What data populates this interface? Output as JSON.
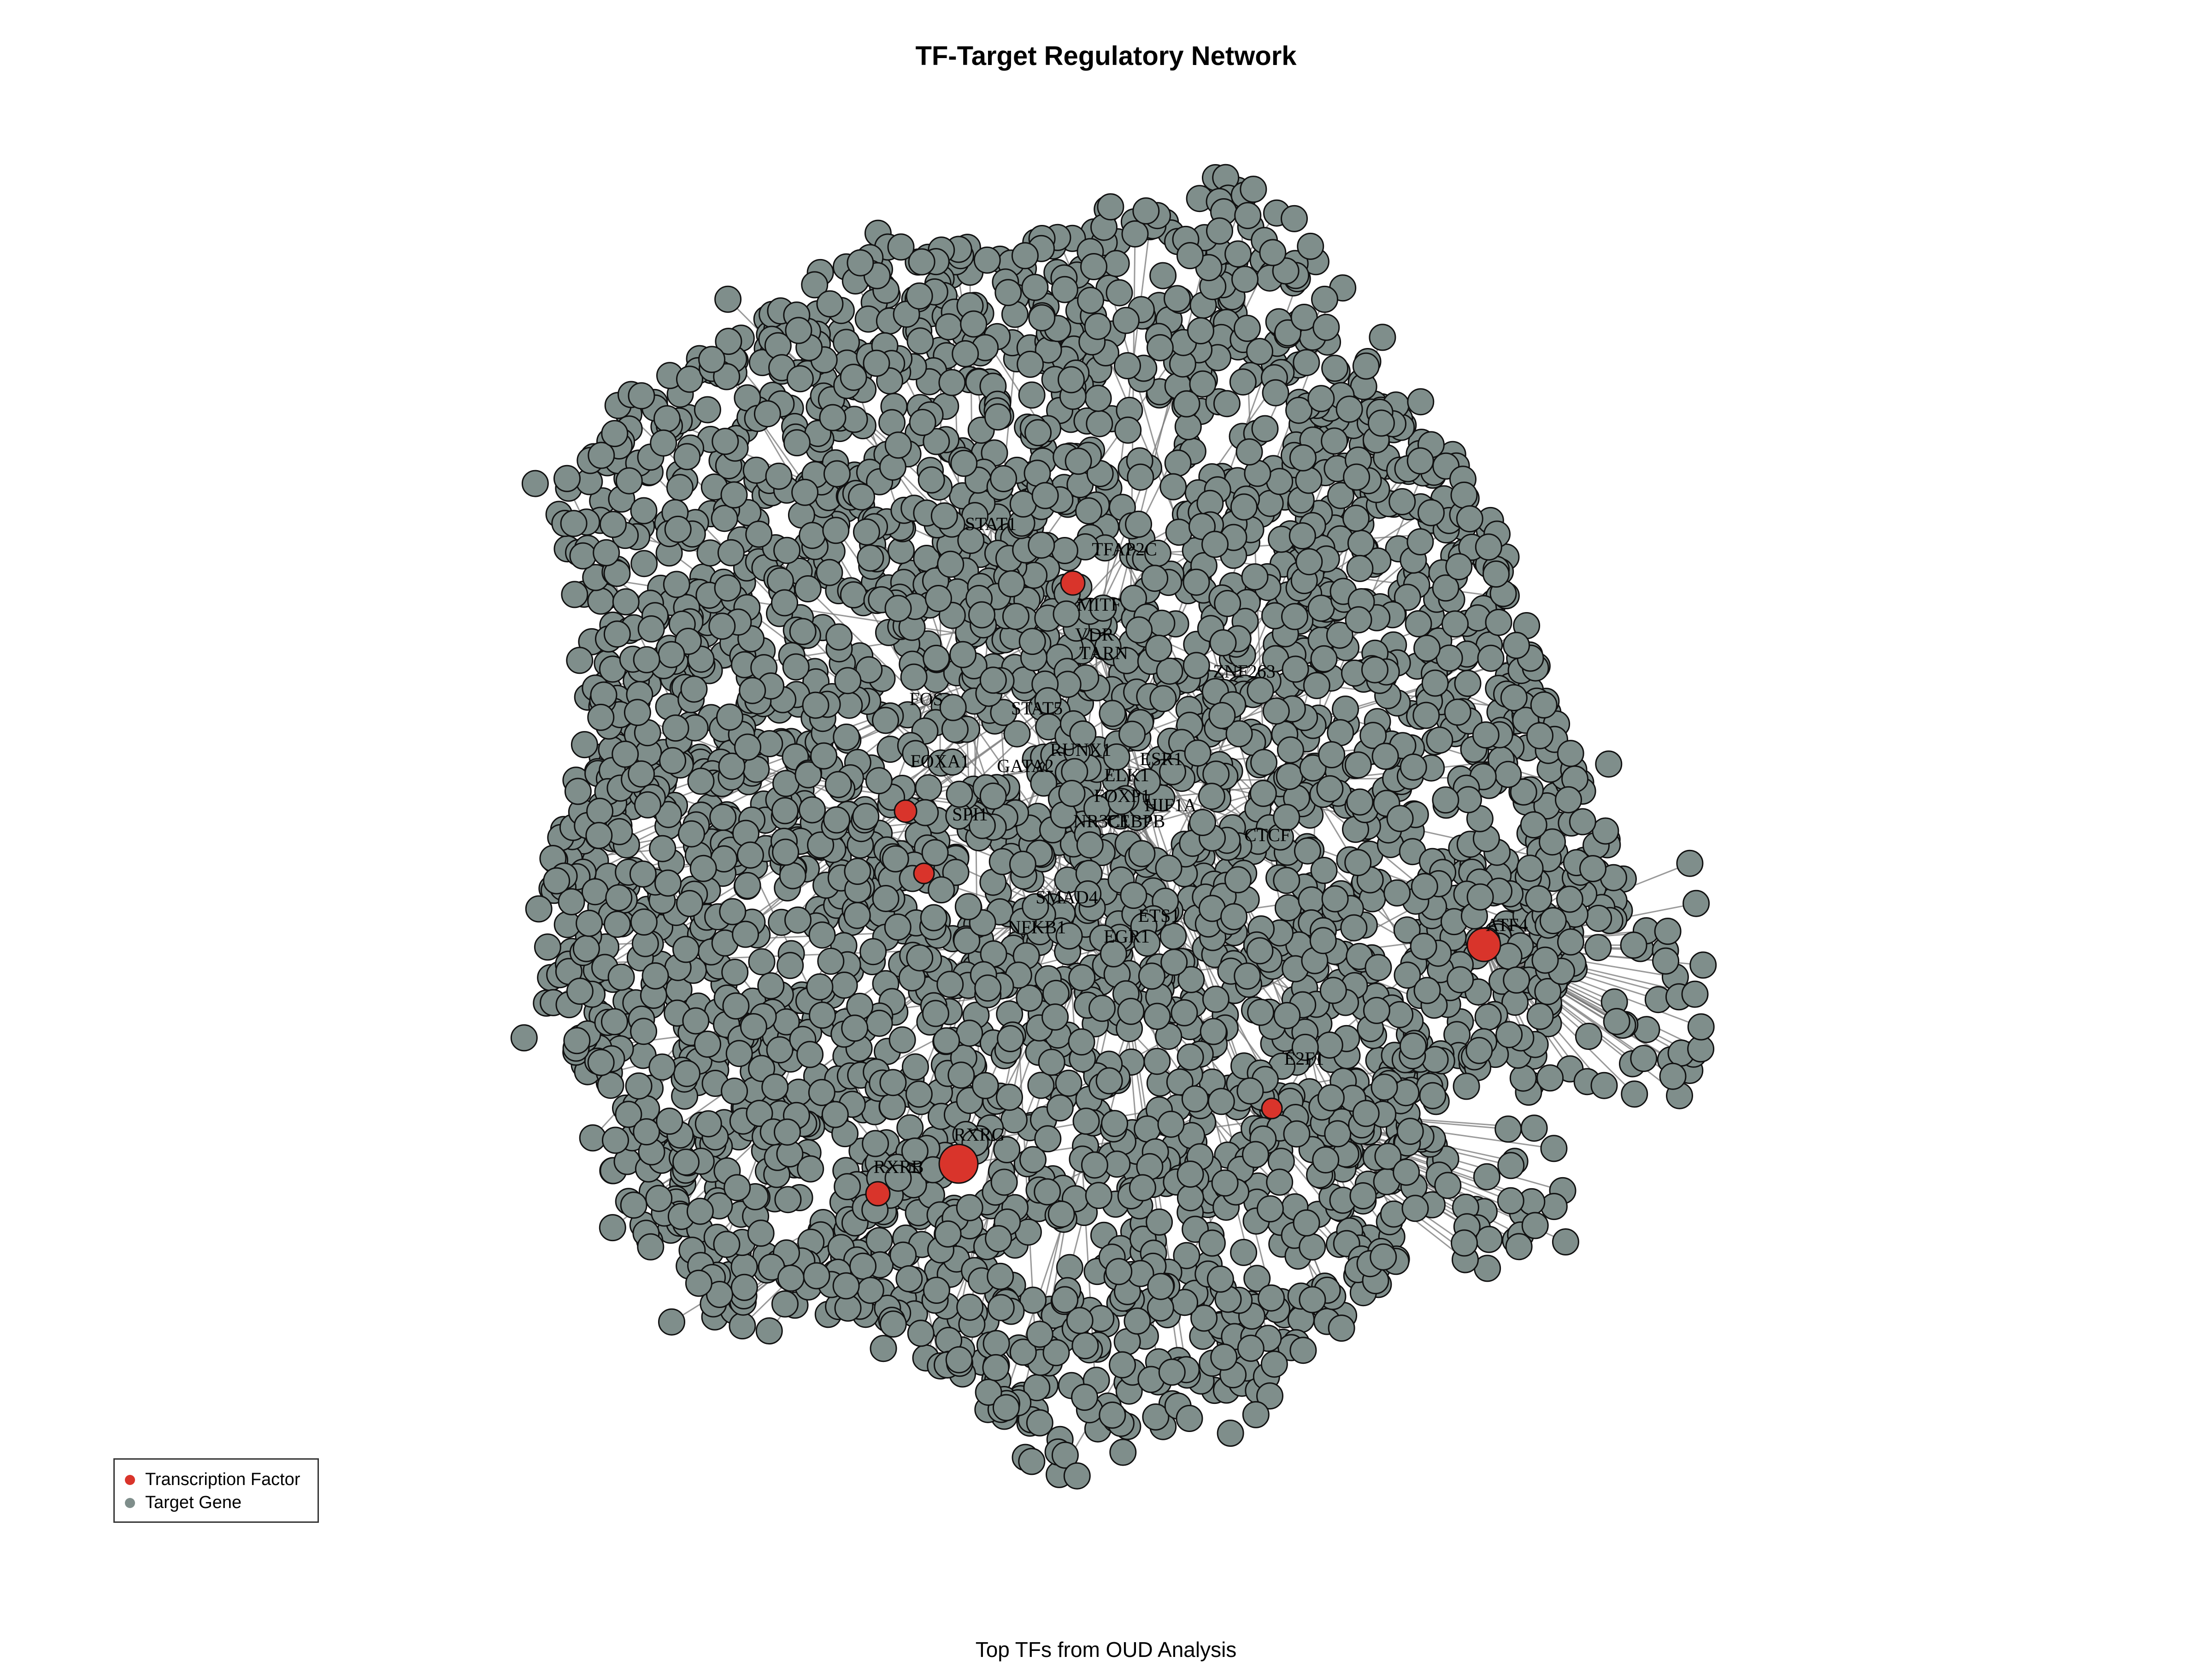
{
  "title": "TF-Target Regulatory Network",
  "subtitle": "Top TFs from OUD Analysis",
  "colors": {
    "tf": "#d9342b",
    "target": "#7f8e8b",
    "node_stroke": "#111111",
    "edge": "#777777",
    "background": "#ffffff"
  },
  "legend": {
    "tf_label": "Transcription Factor",
    "target_label": "Target Gene"
  },
  "network": {
    "node_types": [
      "Transcription Factor",
      "Target Gene"
    ],
    "tf_labels": [
      "STAT1",
      "TFAP2C",
      "MITF",
      "VDR",
      "TARN",
      "ZNF263",
      "FOS",
      "STAT5",
      "FOXA1",
      "GATA2",
      "RUNX1",
      "ESR1",
      "ELK1",
      "FOXP1",
      "HIF1A",
      "SPI1",
      "NR3C1",
      "CEBPB",
      "CTCF",
      "SMAD4",
      "NFKB1",
      "ETS1",
      "EGR1",
      "ATF4",
      "E2F1",
      "RXRG",
      "RXRB"
    ]
  }
}
